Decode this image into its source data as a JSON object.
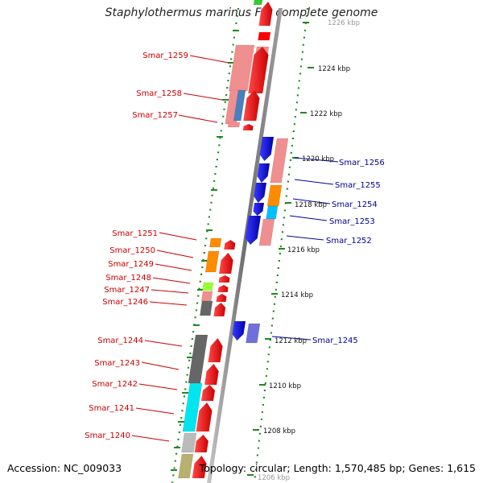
{
  "title": "Staphylothermus marinus F1, complete genome",
  "accession": "Accession: NC_009033",
  "summary": "Topology: circular; Length: 1,570,485 bp; Genes: 1,615",
  "colors": {
    "forward_cds": "#ff0000",
    "reverse_cds": "#0000dd",
    "backbone": "#888888",
    "dotted_ring": "#228822",
    "label_left": "#cc0000",
    "label_right": "#000099"
  },
  "scale_ticks": [
    {
      "kbp": 1226,
      "label": "1226 kbp",
      "faint": true
    },
    {
      "kbp": 1224,
      "label": "1224 kbp"
    },
    {
      "kbp": 1222,
      "label": "1222 kbp"
    },
    {
      "kbp": 1220,
      "label": "1220 kbp"
    },
    {
      "kbp": 1218,
      "label": "1218 kbp"
    },
    {
      "kbp": 1216,
      "label": "1216 kbp"
    },
    {
      "kbp": 1214,
      "label": "1214 kbp"
    },
    {
      "kbp": 1212,
      "label": "1212 kbp"
    },
    {
      "kbp": 1210,
      "label": "1210 kbp"
    },
    {
      "kbp": 1208,
      "label": "1208 kbp"
    },
    {
      "kbp": 1206,
      "label": "1206 kbp",
      "faint": true
    }
  ],
  "genes_left": [
    {
      "name": "Smar_1259",
      "cog": "#f08f8f"
    },
    {
      "name": "Smar_1258",
      "cog": "#4a7fc0"
    },
    {
      "name": "Smar_1257",
      "cog": "#f08f8f"
    },
    {
      "name": "Smar_1251",
      "cog": "#ff8c00"
    },
    {
      "name": "Smar_1250",
      "cog": "#ff8c00"
    },
    {
      "name": "Smar_1249",
      "cog": "none"
    },
    {
      "name": "Smar_1248",
      "cog": "#99ff33"
    },
    {
      "name": "Smar_1247",
      "cog": "#f08f8f"
    },
    {
      "name": "Smar_1246",
      "cog": "#666666"
    },
    {
      "name": "Smar_1244",
      "cog": "#666666"
    },
    {
      "name": "Smar_1243",
      "cog": "#666666"
    },
    {
      "name": "Smar_1242",
      "cog": "#00e5ee"
    },
    {
      "name": "Smar_1241",
      "cog": "#00e5ee"
    },
    {
      "name": "Smar_1240",
      "cog": "#bbbbbb"
    }
  ],
  "genes_right": [
    {
      "name": "Smar_1256",
      "cog": "#f08f8f"
    },
    {
      "name": "Smar_1255",
      "cog": "#f08f8f"
    },
    {
      "name": "Smar_1254",
      "cog": "#ff8c00"
    },
    {
      "name": "Smar_1253",
      "cog": "#00bfff"
    },
    {
      "name": "Smar_1252",
      "cog": "#f08f8f"
    },
    {
      "name": "Smar_1245",
      "cog": "#7070dd"
    }
  ]
}
